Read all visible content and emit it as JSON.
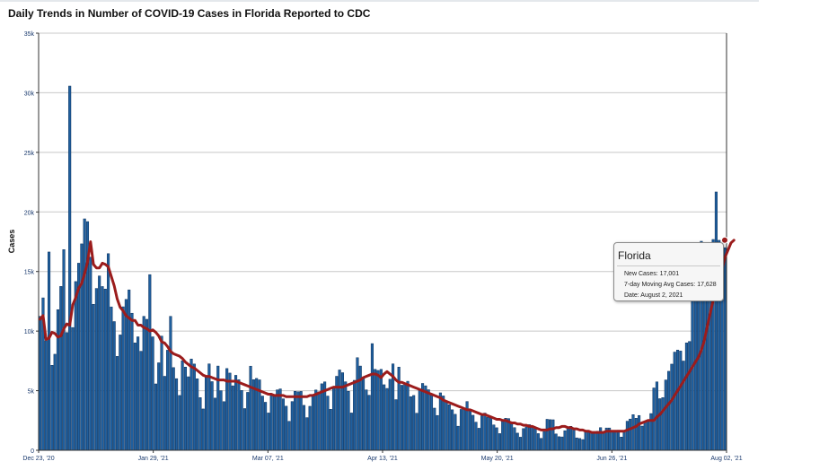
{
  "page": {
    "title": "Daily Trends in Number of COVID-19 Cases in Florida Reported to CDC"
  },
  "chart_data": {
    "type": "bar",
    "title": "Daily Trends in Number of COVID-19 Cases in Florida Reported to CDC",
    "ylabel": "Cases",
    "xlabel": "",
    "ylim": [
      0,
      35000
    ],
    "yticks": [
      0,
      5000,
      10000,
      15000,
      20000,
      25000,
      30000,
      35000
    ],
    "ytick_labels": [
      "0",
      "5k",
      "10k",
      "15k",
      "20k",
      "25k",
      "30k",
      "35k"
    ],
    "xtick_labels": [
      "Dec 23, '20",
      "Jan 29, '21",
      "Mar 07, '21",
      "Apr 13, '21",
      "May 20, '21",
      "Jun 26, '21",
      "Aug 02, '21"
    ],
    "grid": true,
    "start_date": "2020-12-23",
    "end_date": "2021-08-02",
    "colors": {
      "bars": "#1f5f9e",
      "bar_stroke": "#0b2f5a",
      "moving_avg": "#9b1c1c",
      "grid": "#c8c8c8"
    },
    "series": [
      {
        "name": "New Cases",
        "values": [
          11240,
          12790,
          9190,
          16640,
          7130,
          8060,
          11800,
          13750,
          16840,
          9880,
          30560,
          10300,
          14160,
          15700,
          17320,
          19420,
          19190,
          16210,
          12250,
          13580,
          14630,
          13740,
          13530,
          16500,
          12030,
          10800,
          7880,
          9680,
          12040,
          12660,
          13460,
          11500,
          9010,
          9520,
          8310,
          11240,
          10990,
          14740,
          9520,
          5570,
          7340,
          9580,
          6210,
          8400,
          11240,
          6940,
          6010,
          4600,
          7510,
          6980,
          6170,
          7660,
          7240,
          6000,
          4420,
          3470,
          6270,
          7250,
          5760,
          4380,
          7070,
          5000,
          4080,
          6860,
          6480,
          5410,
          6290,
          5920,
          5020,
          3500,
          4860,
          7060,
          5930,
          6030,
          5910,
          4550,
          4030,
          3130,
          4600,
          4640,
          5070,
          5150,
          4320,
          3700,
          2430,
          4090,
          4950,
          4910,
          4940,
          3770,
          2740,
          3690,
          4680,
          5060,
          4900,
          5580,
          5740,
          4550,
          3440,
          5270,
          6210,
          6740,
          6510,
          5750,
          4950,
          3130,
          5870,
          7770,
          7070,
          6080,
          5070,
          4620,
          8950,
          6790,
          6700,
          6790,
          5500,
          5190,
          5960,
          7250,
          4250,
          6980,
          5460,
          5510,
          5790,
          4500,
          4600,
          3110,
          5120,
          5610,
          5410,
          5080,
          4690,
          3540,
          2920,
          4820,
          4560,
          4130,
          3820,
          3400,
          3020,
          2020,
          3430,
          3410,
          4090,
          3320,
          2940,
          2360,
          1850,
          2890,
          3120,
          2760,
          2750,
          2130,
          1890,
          1400,
          2500,
          2690,
          2660,
          2320,
          1900,
          1440,
          1100,
          1820,
          1960,
          2150,
          2040,
          1800,
          1400,
          1000,
          1570,
          2600,
          2570,
          2560,
          1370,
          1140,
          1120,
          1640,
          1890,
          2010,
          1840,
          1040,
          990,
          900,
          1660,
          1600,
          1490,
          1520,
          1600,
          1900,
          1510,
          1870,
          1870,
          1590,
          1600,
          1680,
          1110,
          1520,
          2440,
          2620,
          2990,
          2690,
          2920,
          2030,
          2400,
          2470,
          3080,
          5230,
          5740,
          4330,
          4420,
          5900,
          6630,
          7230,
          8240,
          8410,
          8330,
          7490,
          9010,
          9130,
          12910,
          13710,
          15800,
          17540,
          17320,
          14100,
          16480,
          17690,
          21680,
          17620,
          17200,
          17001
        ]
      },
      {
        "name": "7-day Moving Avg Cases",
        "values": [
          11000,
          11300,
          9300,
          9400,
          9900,
          9800,
          9500,
          9600,
          10200,
          10600,
          10500,
          12200,
          12800,
          13600,
          14000,
          14800,
          15800,
          17500,
          15600,
          15300,
          15300,
          15700,
          15600,
          15400,
          14600,
          13800,
          12700,
          12000,
          11700,
          11300,
          11100,
          10900,
          10900,
          10500,
          10500,
          10300,
          10200,
          10000,
          10100,
          9900,
          9600,
          9100,
          9000,
          8700,
          8300,
          8100,
          8000,
          7900,
          7700,
          7400,
          7200,
          7000,
          6900,
          6700,
          6500,
          6300,
          6200,
          6200,
          6100,
          6000,
          5900,
          5900,
          5900,
          5800,
          5800,
          5800,
          5800,
          5700,
          5600,
          5500,
          5400,
          5300,
          5200,
          5100,
          5000,
          4900,
          4800,
          4700,
          4700,
          4600,
          4600,
          4600,
          4600,
          4500,
          4500,
          4500,
          4500,
          4500,
          4500,
          4500,
          4500,
          4600,
          4600,
          4700,
          4800,
          4900,
          5000,
          5100,
          5200,
          5300,
          5300,
          5300,
          5300,
          5400,
          5500,
          5600,
          5700,
          5800,
          5900,
          6100,
          6200,
          6300,
          6400,
          6400,
          6300,
          6100,
          6400,
          6600,
          6400,
          6200,
          5900,
          5700,
          5700,
          5600,
          5500,
          5400,
          5300,
          5200,
          5100,
          5000,
          4900,
          4800,
          4700,
          4600,
          4500,
          4400,
          4200,
          4100,
          4000,
          3900,
          3800,
          3700,
          3600,
          3500,
          3400,
          3400,
          3300,
          3200,
          3100,
          3000,
          3000,
          2900,
          2800,
          2700,
          2600,
          2600,
          2500,
          2500,
          2400,
          2300,
          2300,
          2200,
          2200,
          2100,
          2100,
          2000,
          2000,
          1900,
          1800,
          1700,
          1700,
          1700,
          1800,
          1800,
          1900,
          1900,
          2000,
          2000,
          1900,
          1900,
          1800,
          1800,
          1700,
          1700,
          1600,
          1600,
          1500,
          1500,
          1500,
          1500,
          1500,
          1600,
          1600,
          1600,
          1600,
          1600,
          1600,
          1600,
          1700,
          1800,
          1900,
          2000,
          2200,
          2300,
          2400,
          2500,
          2500,
          2500,
          2800,
          3000,
          3300,
          3600,
          3900,
          4200,
          4600,
          5000,
          5400,
          5800,
          6200,
          6600,
          7000,
          7400,
          7800,
          8400,
          9200,
          10400,
          11500,
          12600,
          13500,
          14400,
          15200,
          16200,
          16800,
          17400,
          17628
        ]
      }
    ],
    "tooltip": {
      "title": "Florida",
      "lines": [
        "New Cases: 17,001",
        "7-day Moving Avg Cases: 17,628",
        "Date: August 2, 2021"
      ]
    }
  }
}
